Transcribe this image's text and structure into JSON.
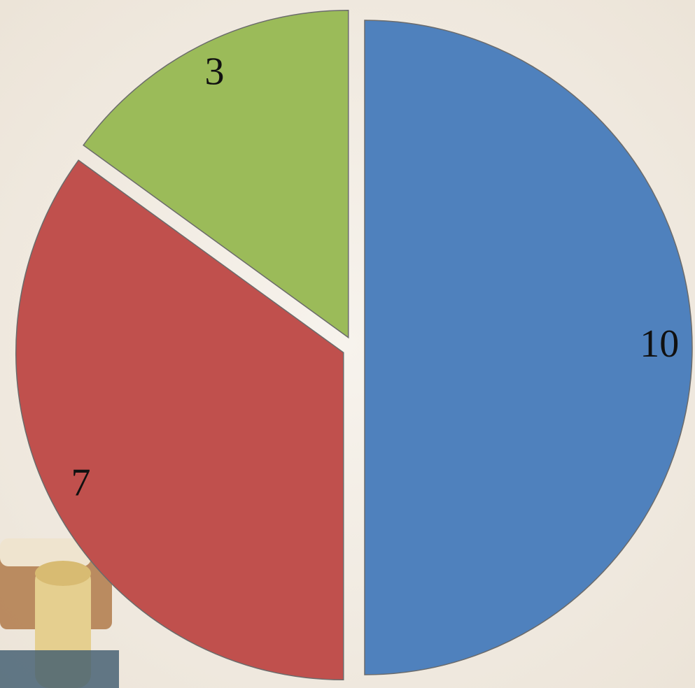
{
  "chart_data": {
    "type": "pie",
    "values": [
      10,
      7,
      3
    ],
    "colors": [
      "#4f81bd",
      "#c0504d",
      "#9bbb59"
    ]
  }
}
